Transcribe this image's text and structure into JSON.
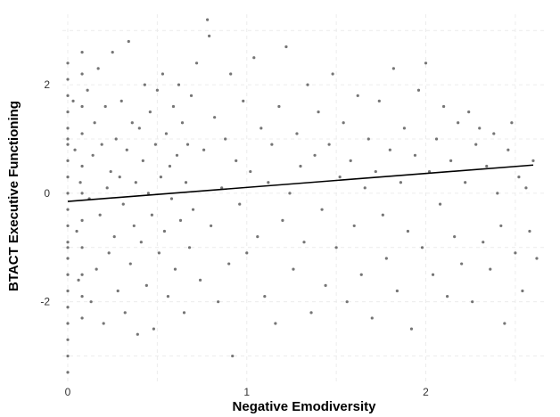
{
  "chart_data": {
    "type": "scatter",
    "title": "",
    "xlabel": "Negative Emodiversity",
    "ylabel": "BTACT Executive Functioning",
    "xlim": [
      -0.03,
      2.66
    ],
    "ylim": [
      -3.5,
      3.3
    ],
    "x_ticks": [
      0,
      1,
      2
    ],
    "y_ticks": [
      -2,
      0,
      2
    ],
    "grid": true,
    "legend": "none",
    "point_color": "#3a3a3a",
    "line_color": "#000000",
    "regression_line": {
      "x": [
        0,
        2.6
      ],
      "y": [
        -0.15,
        0.52
      ]
    },
    "points": [
      [
        0.0,
        2.4
      ],
      [
        0.0,
        2.1
      ],
      [
        0.0,
        1.8
      ],
      [
        0.0,
        1.5
      ],
      [
        0.0,
        1.2
      ],
      [
        0.0,
        0.9
      ],
      [
        0.0,
        0.6
      ],
      [
        0.0,
        0.3
      ],
      [
        0.0,
        0.0
      ],
      [
        0.0,
        -0.3
      ],
      [
        0.0,
        -0.6
      ],
      [
        0.0,
        -0.9
      ],
      [
        0.0,
        -1.2
      ],
      [
        0.0,
        -1.5
      ],
      [
        0.0,
        -1.8
      ],
      [
        0.0,
        -2.1
      ],
      [
        0.0,
        -2.4
      ],
      [
        0.0,
        -2.7
      ],
      [
        0.0,
        -3.0
      ],
      [
        0.0,
        -3.3
      ],
      [
        0.0,
        1.0
      ],
      [
        0.0,
        -1.0
      ],
      [
        0.08,
        2.6
      ],
      [
        0.08,
        2.2
      ],
      [
        0.08,
        1.6
      ],
      [
        0.08,
        1.1
      ],
      [
        0.08,
        0.5
      ],
      [
        0.08,
        0.0
      ],
      [
        0.08,
        -0.5
      ],
      [
        0.08,
        -1.0
      ],
      [
        0.08,
        -1.5
      ],
      [
        0.08,
        -1.9
      ],
      [
        0.08,
        -2.3
      ],
      [
        0.03,
        1.7
      ],
      [
        0.04,
        0.8
      ],
      [
        0.05,
        -0.7
      ],
      [
        0.06,
        -1.6
      ],
      [
        0.07,
        0.2
      ],
      [
        0.11,
        1.9
      ],
      [
        0.12,
        -0.1
      ],
      [
        0.13,
        -2.0
      ],
      [
        0.14,
        0.7
      ],
      [
        0.15,
        1.3
      ],
      [
        0.16,
        -1.4
      ],
      [
        0.17,
        2.3
      ],
      [
        0.18,
        -0.4
      ],
      [
        0.19,
        0.9
      ],
      [
        0.2,
        -2.4
      ],
      [
        0.21,
        1.6
      ],
      [
        0.22,
        0.1
      ],
      [
        0.23,
        -1.1
      ],
      [
        0.24,
        0.4
      ],
      [
        0.25,
        2.6
      ],
      [
        0.26,
        -0.8
      ],
      [
        0.27,
        1.0
      ],
      [
        0.28,
        -1.8
      ],
      [
        0.29,
        0.3
      ],
      [
        0.3,
        1.7
      ],
      [
        0.31,
        -0.2
      ],
      [
        0.32,
        -2.2
      ],
      [
        0.33,
        0.8
      ],
      [
        0.34,
        2.8
      ],
      [
        0.35,
        -1.3
      ],
      [
        0.36,
        1.3
      ],
      [
        0.37,
        -0.6
      ],
      [
        0.38,
        0.2
      ],
      [
        0.39,
        -2.6
      ],
      [
        0.4,
        1.2
      ],
      [
        0.41,
        -0.9
      ],
      [
        0.42,
        0.6
      ],
      [
        0.43,
        2.0
      ],
      [
        0.44,
        -1.7
      ],
      [
        0.45,
        0.0
      ],
      [
        0.46,
        1.5
      ],
      [
        0.47,
        -0.4
      ],
      [
        0.48,
        -2.5
      ],
      [
        0.49,
        0.9
      ],
      [
        0.5,
        1.9
      ],
      [
        0.51,
        -1.1
      ],
      [
        0.52,
        0.3
      ],
      [
        0.53,
        2.2
      ],
      [
        0.54,
        -0.7
      ],
      [
        0.55,
        1.1
      ],
      [
        0.56,
        -1.9
      ],
      [
        0.57,
        0.5
      ],
      [
        0.58,
        -0.1
      ],
      [
        0.59,
        1.6
      ],
      [
        0.6,
        -1.4
      ],
      [
        0.61,
        0.7
      ],
      [
        0.62,
        2.0
      ],
      [
        0.63,
        -0.5
      ],
      [
        0.64,
        1.3
      ],
      [
        0.65,
        -2.2
      ],
      [
        0.66,
        0.2
      ],
      [
        0.67,
        0.9
      ],
      [
        0.68,
        -1.0
      ],
      [
        0.69,
        1.8
      ],
      [
        0.7,
        -0.3
      ],
      [
        0.72,
        2.4
      ],
      [
        0.74,
        -1.6
      ],
      [
        0.76,
        0.8
      ],
      [
        0.78,
        3.2
      ],
      [
        0.79,
        2.9
      ],
      [
        0.8,
        -0.6
      ],
      [
        0.82,
        1.4
      ],
      [
        0.84,
        -2.0
      ],
      [
        0.86,
        0.1
      ],
      [
        0.88,
        1.0
      ],
      [
        0.9,
        -1.3
      ],
      [
        0.91,
        2.2
      ],
      [
        0.92,
        -3.0
      ],
      [
        0.94,
        0.6
      ],
      [
        0.96,
        -0.2
      ],
      [
        0.98,
        1.7
      ],
      [
        1.0,
        -1.1
      ],
      [
        1.02,
        0.4
      ],
      [
        1.04,
        2.5
      ],
      [
        1.06,
        -0.8
      ],
      [
        1.08,
        1.2
      ],
      [
        1.1,
        -1.9
      ],
      [
        1.12,
        0.2
      ],
      [
        1.14,
        0.9
      ],
      [
        1.16,
        -2.4
      ],
      [
        1.18,
        1.6
      ],
      [
        1.2,
        -0.5
      ],
      [
        1.22,
        2.7
      ],
      [
        1.24,
        0.0
      ],
      [
        1.26,
        -1.4
      ],
      [
        1.28,
        1.1
      ],
      [
        1.3,
        0.5
      ],
      [
        1.32,
        -0.9
      ],
      [
        1.34,
        2.0
      ],
      [
        1.36,
        -2.2
      ],
      [
        1.38,
        0.7
      ],
      [
        1.4,
        1.5
      ],
      [
        1.42,
        -0.3
      ],
      [
        1.44,
        -1.7
      ],
      [
        1.46,
        0.9
      ],
      [
        1.48,
        2.2
      ],
      [
        1.5,
        -1.0
      ],
      [
        1.52,
        0.3
      ],
      [
        1.54,
        1.3
      ],
      [
        1.56,
        -2.0
      ],
      [
        1.58,
        0.6
      ],
      [
        1.6,
        -0.6
      ],
      [
        1.62,
        1.8
      ],
      [
        1.64,
        -1.5
      ],
      [
        1.66,
        0.1
      ],
      [
        1.68,
        1.0
      ],
      [
        1.7,
        -2.3
      ],
      [
        1.72,
        0.4
      ],
      [
        1.74,
        1.7
      ],
      [
        1.76,
        -0.4
      ],
      [
        1.78,
        -1.2
      ],
      [
        1.8,
        0.8
      ],
      [
        1.82,
        2.3
      ],
      [
        1.84,
        -1.8
      ],
      [
        1.86,
        0.2
      ],
      [
        1.88,
        1.2
      ],
      [
        1.9,
        -0.7
      ],
      [
        1.92,
        -2.5
      ],
      [
        1.94,
        0.7
      ],
      [
        1.96,
        1.9
      ],
      [
        1.98,
        -1.0
      ],
      [
        2.0,
        2.4
      ],
      [
        2.02,
        0.4
      ],
      [
        2.04,
        -1.5
      ],
      [
        2.06,
        1.0
      ],
      [
        2.08,
        -0.2
      ],
      [
        2.1,
        1.6
      ],
      [
        2.12,
        -1.9
      ],
      [
        2.14,
        0.6
      ],
      [
        2.16,
        -0.8
      ],
      [
        2.18,
        1.3
      ],
      [
        2.2,
        -1.3
      ],
      [
        2.22,
        0.2
      ],
      [
        2.24,
        1.5
      ],
      [
        2.26,
        -2.0
      ],
      [
        2.28,
        0.9
      ],
      [
        2.3,
        1.2
      ],
      [
        2.32,
        -0.9
      ],
      [
        2.34,
        0.5
      ],
      [
        2.36,
        -1.4
      ],
      [
        2.38,
        1.1
      ],
      [
        2.4,
        0.0
      ],
      [
        2.42,
        -0.6
      ],
      [
        2.44,
        -2.4
      ],
      [
        2.46,
        0.8
      ],
      [
        2.48,
        1.3
      ],
      [
        2.5,
        -1.1
      ],
      [
        2.52,
        0.3
      ],
      [
        2.54,
        -1.8
      ],
      [
        2.56,
        0.1
      ],
      [
        2.58,
        -0.7
      ],
      [
        2.6,
        0.6
      ],
      [
        2.62,
        -1.2
      ]
    ]
  }
}
